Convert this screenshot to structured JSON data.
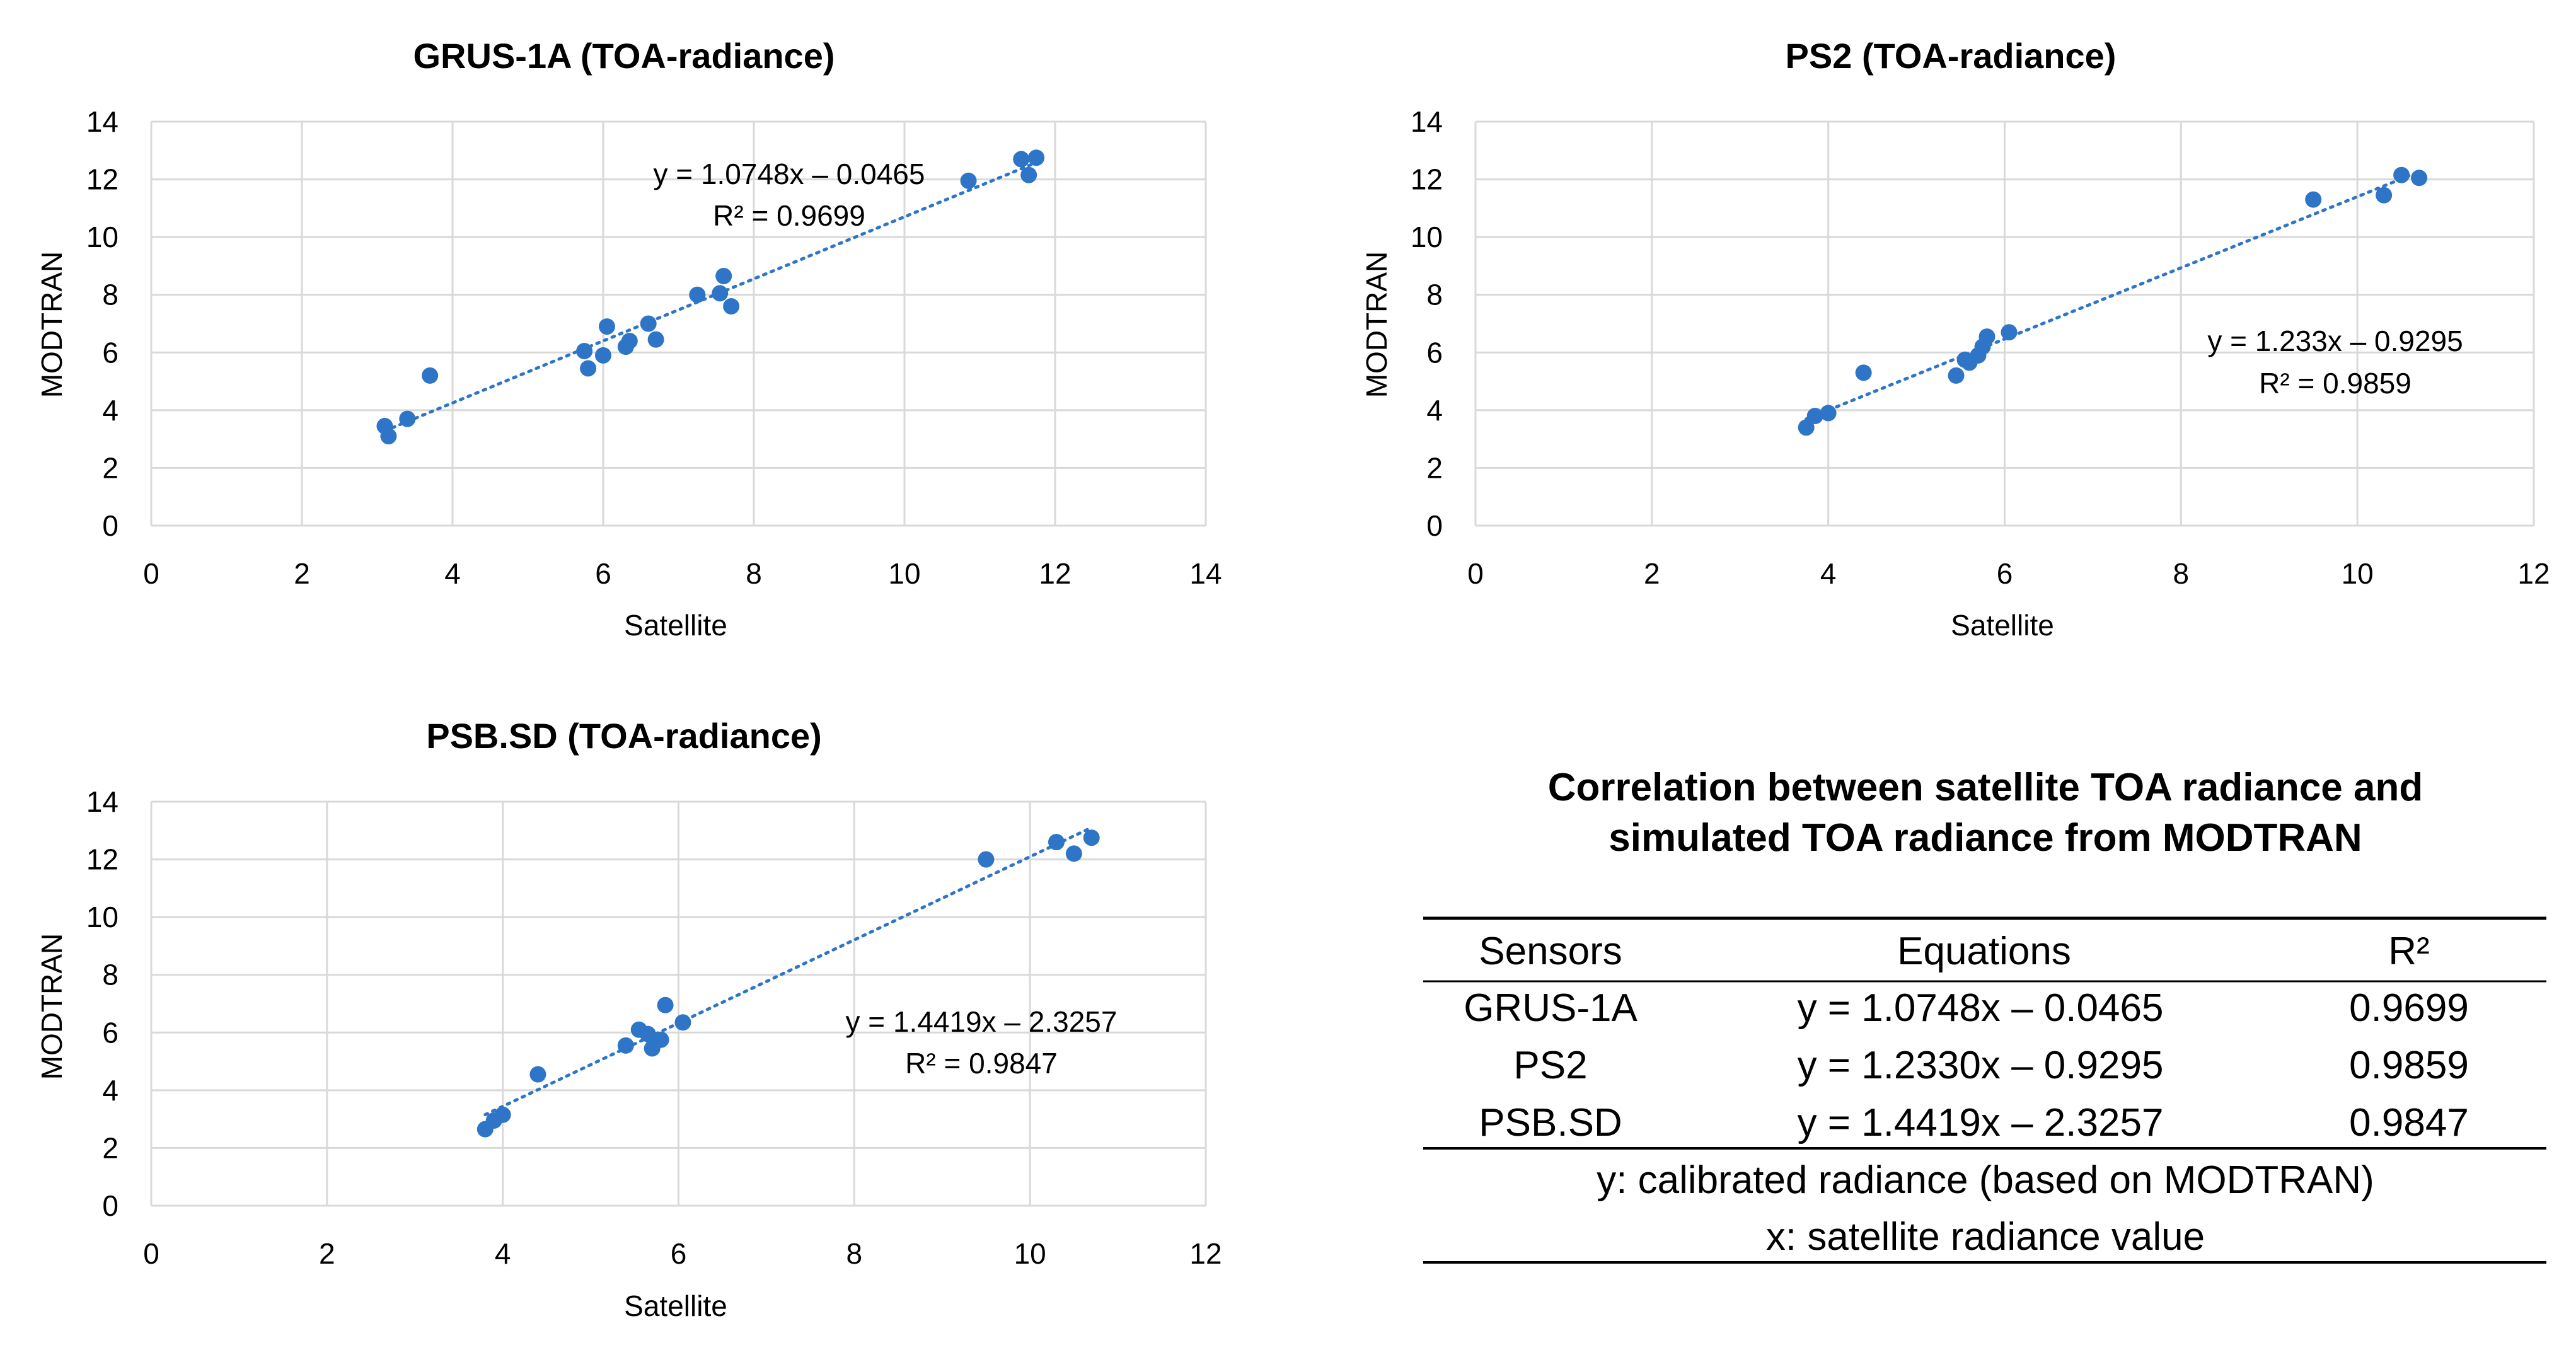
{
  "chart_data": [
    {
      "type": "scatter",
      "title": "GRUS-1A (TOA-radiance)",
      "xlabel": "Satellite",
      "ylabel": "MODTRAN",
      "xlim": [
        0,
        14
      ],
      "ylim": [
        0,
        14
      ],
      "xticks": [
        "0",
        "2",
        "4",
        "6",
        "8",
        "10",
        "12",
        "14"
      ],
      "yticks": [
        "0",
        "2",
        "4",
        "6",
        "8",
        "10",
        "12",
        "14"
      ],
      "grid": true,
      "series": [
        {
          "name": "GRUS-1A",
          "color": "#2e75c7",
          "x": [
            3.1,
            3.15,
            3.4,
            3.7,
            5.75,
            5.8,
            6.0,
            6.05,
            6.3,
            6.35,
            6.6,
            6.7,
            7.25,
            7.55,
            7.6,
            7.7,
            10.85,
            11.55,
            11.65,
            11.75
          ],
          "y": [
            3.45,
            3.1,
            3.7,
            5.2,
            6.05,
            5.45,
            5.9,
            6.9,
            6.2,
            6.4,
            7.0,
            6.45,
            8.0,
            8.05,
            8.65,
            7.6,
            11.95,
            12.7,
            12.15,
            12.75
          ]
        }
      ],
      "trendline": {
        "slope": 1.0748,
        "intercept": -0.0465,
        "x_range": [
          3.1,
          11.75
        ],
        "equation": "y = 1.0748x – 0.0465",
        "r2": "R² = 0.9699"
      }
    },
    {
      "type": "scatter",
      "title": "PS2 (TOA-radiance)",
      "xlabel": "Satellite",
      "ylabel": "MODTRAN",
      "xlim": [
        0,
        12
      ],
      "ylim": [
        0,
        14
      ],
      "xticks": [
        "0",
        "2",
        "4",
        "6",
        "8",
        "10",
        "12"
      ],
      "yticks": [
        "0",
        "2",
        "4",
        "6",
        "8",
        "10",
        "12",
        "14"
      ],
      "grid": true,
      "series": [
        {
          "name": "PS2",
          "color": "#2e75c7",
          "x": [
            3.75,
            3.85,
            4.0,
            4.4,
            5.45,
            5.55,
            5.6,
            5.7,
            5.75,
            5.8,
            6.05,
            9.5,
            10.3,
            10.5,
            10.7
          ],
          "y": [
            3.4,
            3.8,
            3.9,
            5.3,
            5.2,
            5.75,
            5.65,
            5.9,
            6.2,
            6.55,
            6.7,
            11.3,
            11.45,
            12.15,
            12.05
          ]
        }
      ],
      "trendline": {
        "slope": 1.233,
        "intercept": -0.9295,
        "x_range": [
          3.75,
          10.7
        ],
        "equation": "y = 1.233x – 0.9295",
        "r2": "R² = 0.9859"
      }
    },
    {
      "type": "scatter",
      "title": "PSB.SD (TOA-radiance)",
      "xlabel": "Satellite",
      "ylabel": "MODTRAN",
      "xlim": [
        0,
        12
      ],
      "ylim": [
        0,
        14
      ],
      "xticks": [
        "0",
        "2",
        "4",
        "6",
        "8",
        "10",
        "12"
      ],
      "yticks": [
        "0",
        "2",
        "4",
        "6",
        "8",
        "10",
        "12",
        "14"
      ],
      "grid": true,
      "series": [
        {
          "name": "PSB.SD",
          "color": "#2e75c7",
          "x": [
            3.8,
            3.9,
            4.0,
            4.4,
            5.4,
            5.55,
            5.65,
            5.7,
            5.8,
            5.85,
            6.05,
            9.5,
            10.3,
            10.5,
            10.7
          ],
          "y": [
            2.65,
            2.95,
            3.15,
            4.55,
            5.55,
            6.1,
            5.95,
            5.45,
            5.75,
            6.95,
            6.35,
            12.0,
            12.6,
            12.2,
            12.75
          ]
        }
      ],
      "trendline": {
        "slope": 1.4419,
        "intercept": -2.3257,
        "x_range": [
          3.8,
          10.7
        ],
        "equation": "y = 1.4419x – 2.3257",
        "r2": "R² = 0.9847"
      }
    },
    {
      "type": "table",
      "title_lines": [
        "Correlation between satellite TOA radiance and",
        "simulated TOA radiance from MODTRAN"
      ],
      "columns": [
        "Sensors",
        "Equations",
        "R²"
      ],
      "rows": [
        [
          "GRUS-1A",
          "y = 1.0748x – 0.0465",
          "0.9699"
        ],
        [
          "PS2",
          "y = 1.2330x – 0.9295",
          "0.9859"
        ],
        [
          "PSB.SD",
          "y = 1.4419x – 2.3257",
          "0.9847"
        ]
      ],
      "notes": [
        "y: calibrated radiance (based on MODTRAN)",
        "x: satellite radiance value"
      ]
    }
  ]
}
